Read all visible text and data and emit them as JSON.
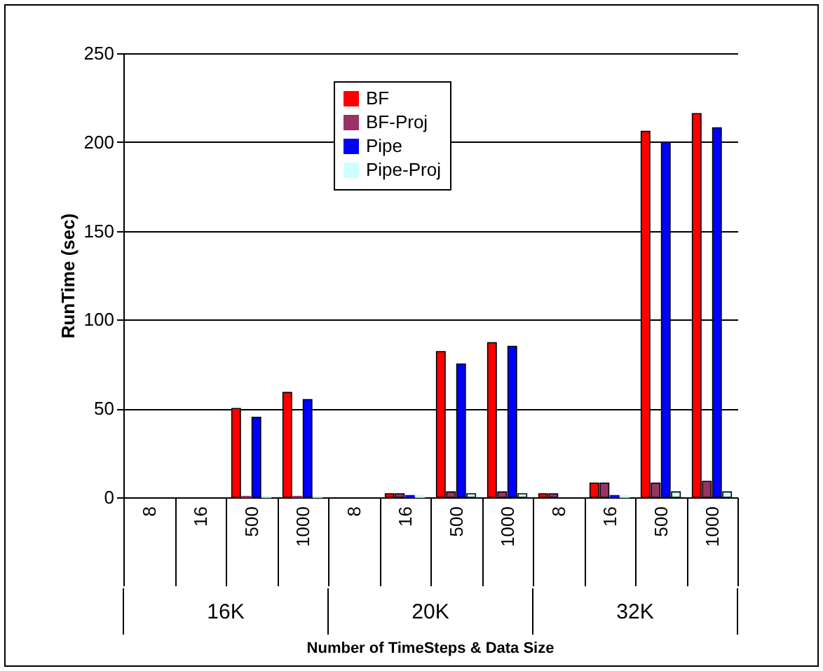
{
  "chart_data": {
    "type": "bar",
    "ylabel": "RunTime (sec)",
    "categories": [
      "8",
      "16",
      "500",
      "1000",
      "8",
      "16",
      "500",
      "1000",
      "8",
      "16",
      "500",
      "1000"
    ],
    "annotations": [
      "16K",
      "20K",
      "32K",
      "Number of TimeSteps & Data Size"
    ],
    "series": [
      {
        "name": "BF",
        "color": "#ff0000",
        "values": [
          null,
          null,
          50,
          59,
          null,
          2,
          82,
          87,
          2,
          8,
          206,
          216
        ]
      },
      {
        "name": "BF-Proj",
        "color": "#993366",
        "values": [
          null,
          null,
          0.5,
          0.5,
          null,
          2,
          3,
          3,
          2,
          8,
          8,
          9
        ]
      },
      {
        "name": "Pipe",
        "color": "#0000ff",
        "values": [
          null,
          null,
          45,
          55,
          null,
          1,
          75,
          85,
          null,
          1,
          200,
          208
        ]
      },
      {
        "name": "Pipe-Proj",
        "color": "#ccffff",
        "values": [
          null,
          null,
          0.5,
          0.5,
          null,
          1,
          2,
          2,
          null,
          1,
          3,
          3
        ]
      }
    ],
    "ylim": [
      0,
      250
    ],
    "yticks": [
      0,
      50,
      100,
      150,
      200,
      250
    ],
    "grid": "y",
    "legend": "top"
  }
}
